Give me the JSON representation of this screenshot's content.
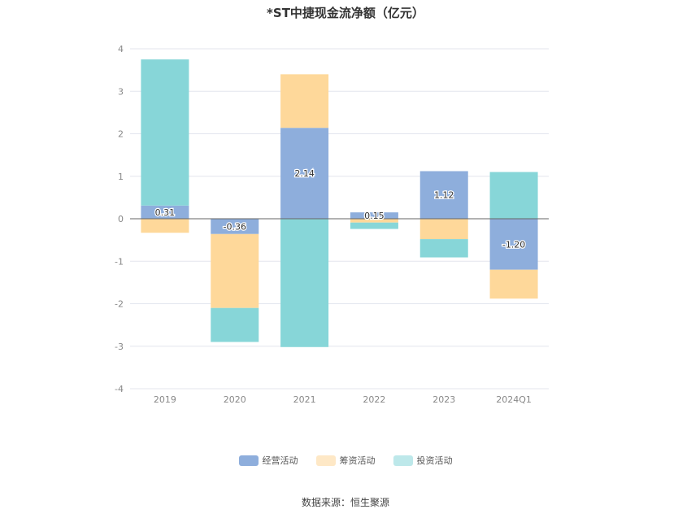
{
  "chart_data": {
    "type": "bar",
    "stacked": true,
    "title": "*ST中捷现金流净额（亿元）",
    "categories": [
      "2019",
      "2020",
      "2021",
      "2022",
      "2023",
      "2024Q1"
    ],
    "ylim": [
      -4,
      4
    ],
    "yticks": [
      "4",
      "3",
      "2",
      "1",
      "0",
      "-1",
      "-2",
      "-3",
      "-4"
    ],
    "grid": true,
    "legend_position": "bottom",
    "series": [
      {
        "name": "经营活动",
        "color": "#8eaedc",
        "values": [
          0.31,
          -0.36,
          2.14,
          0.15,
          1.12,
          -1.2
        ],
        "labels": [
          "0.31",
          "-0.36",
          "2.14",
          "0.15",
          "1.12",
          "-1.20"
        ]
      },
      {
        "name": "筹资活动",
        "color": "#fed89a",
        "values": [
          -0.33,
          -1.74,
          1.26,
          -0.09,
          -0.48,
          -0.68
        ]
      },
      {
        "name": "投资活动",
        "color": "#87d6d8",
        "values": [
          3.44,
          -0.8,
          -3.02,
          -0.15,
          -0.43,
          1.1
        ]
      }
    ]
  },
  "source_text": "数据来源：恒生聚源"
}
